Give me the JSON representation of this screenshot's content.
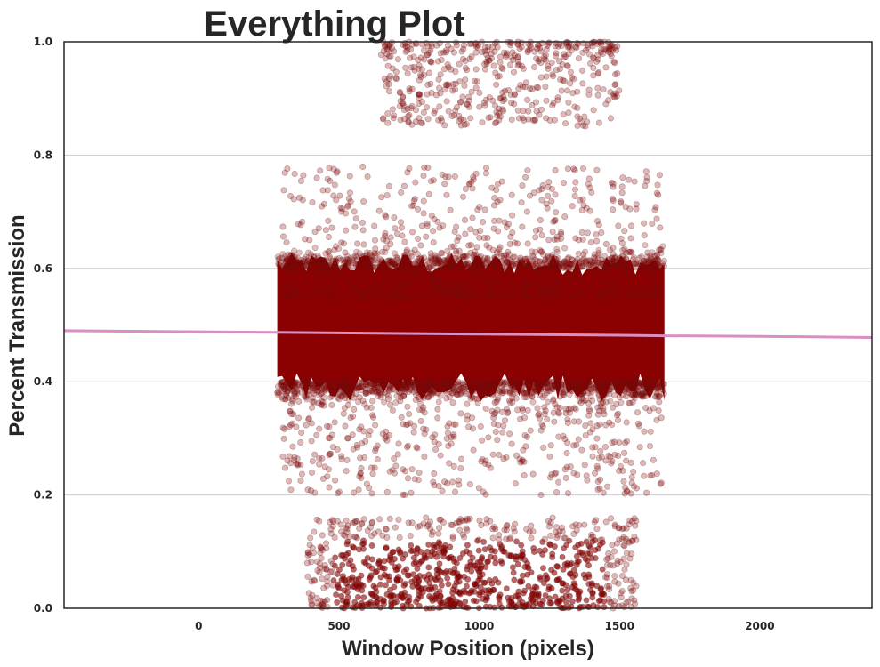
{
  "chart_data": {
    "type": "scatter",
    "title": "Everything Plot",
    "xlabel": "Window Position (pixels)",
    "ylabel": "Percent Transmission",
    "xlim": [
      -480,
      2400
    ],
    "ylim": [
      0.0,
      1.0
    ],
    "xticks": [
      0,
      500,
      1000,
      1500,
      2000
    ],
    "xtick_labels": [
      "0",
      "500",
      "1000",
      "1500",
      "2000"
    ],
    "yticks": [
      0.0,
      0.2,
      0.4,
      0.6,
      0.8,
      1.0
    ],
    "ytick_labels": [
      "0.0",
      "0.2",
      "0.4",
      "0.6",
      "0.8",
      "1.0"
    ],
    "grid": "horizontal",
    "colors": {
      "points": "#8b0000",
      "trend": "#d98fc2",
      "frame": "#262626",
      "grid": "#cccccc"
    },
    "series": [
      {
        "kind": "scatter-band",
        "x_range": [
          280,
          1660
        ],
        "y_center": 0.5,
        "y_halfwidth": 0.1,
        "clusters": [
          {
            "x_range": [
              300,
              1650
            ],
            "y_range": [
              0.55,
              0.78
            ]
          },
          {
            "x_range": [
              300,
              1650
            ],
            "y_range": [
              0.2,
              0.4
            ]
          },
          {
            "x_range": [
              380,
              1560
            ],
            "y_range": [
              0.0,
              0.16
            ]
          },
          {
            "x_range": [
              650,
              1500
            ],
            "y_range": [
              0.85,
              1.0
            ]
          }
        ]
      },
      {
        "kind": "trend-line",
        "x": [
          -480,
          0,
          280,
          500,
          1000,
          1500,
          1660,
          2000,
          2400
        ],
        "y": [
          0.49,
          0.488,
          0.487,
          0.486,
          0.484,
          0.482,
          0.481,
          0.48,
          0.478
        ]
      }
    ]
  }
}
